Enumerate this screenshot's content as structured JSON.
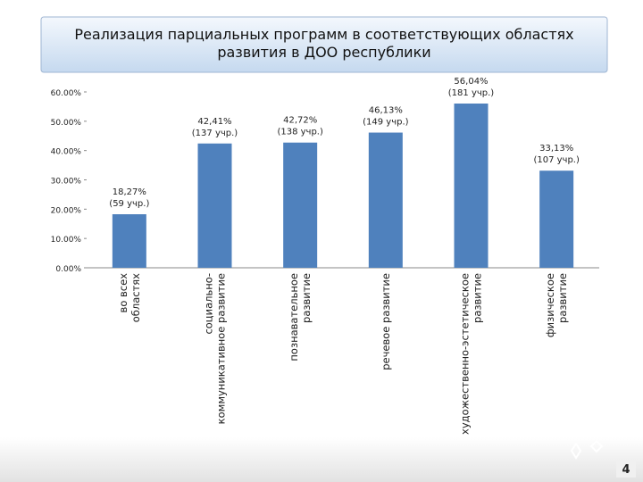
{
  "chart_data": {
    "type": "bar",
    "title": "Реализация парциальных программ в соответствующих областях\nразвития в ДОО республики",
    "categories": [
      "во всех\nобластях",
      "социально-\nкоммуникативное развитие",
      "познавательное\nразвитие",
      "речевое развитие",
      "художественно-эстетическое\nразвитие",
      "физическое\nразвитие"
    ],
    "values": [
      18.27,
      42.41,
      42.72,
      46.13,
      56.04,
      33.13
    ],
    "value_labels": [
      "18,27%\n(59 учр.)",
      "42,41%\n(137 учр.)",
      "42,72%\n(138 учр.)",
      "46,13%\n(149 учр.)",
      "56,04%\n(181 учр.)",
      "33,13%\n(107 учр.)"
    ],
    "color": "#4f81bd",
    "ylim": [
      0,
      60
    ],
    "yticks": [
      {
        "value": 0,
        "label": "0.00%"
      },
      {
        "value": 10,
        "label": "10.00%"
      },
      {
        "value": 20,
        "label": "20.00%"
      },
      {
        "value": 30,
        "label": "30.00%"
      },
      {
        "value": 40,
        "label": "40.00%"
      },
      {
        "value": 50,
        "label": "50.00%"
      },
      {
        "value": 60,
        "label": "60.00%"
      }
    ],
    "grid": false,
    "page_number": "4"
  }
}
